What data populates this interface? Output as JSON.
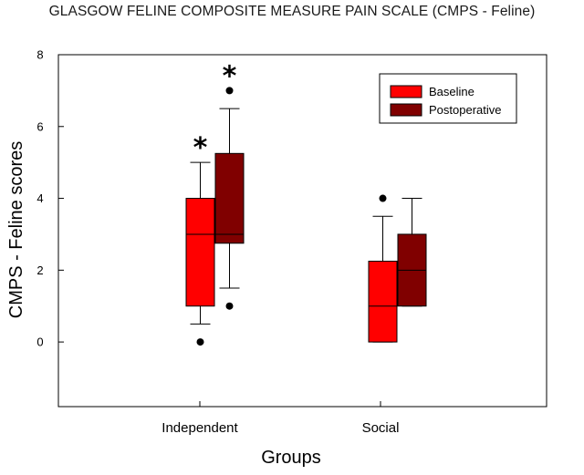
{
  "chart_data": {
    "type": "box",
    "title": "GLASGOW FELINE COMPOSITE MEASURE PAIN SCALE (CMPS - Feline)",
    "xlabel": "Groups",
    "ylabel": "CMPS - Feline scores",
    "ylim": [
      -1.8,
      8
    ],
    "yticks": [
      0,
      2,
      4,
      6,
      8
    ],
    "grid": false,
    "legend_position": "top-right",
    "categories": [
      "Independent",
      "Social"
    ],
    "series": [
      {
        "name": "Baseline",
        "color": "#ff0000",
        "boxes": [
          {
            "category": "Independent",
            "whisker_low": 0.5,
            "q1": 1.0,
            "median": 3.0,
            "q3": 4.0,
            "whisker_high": 5.0,
            "outliers": [
              0
            ],
            "significance": "*"
          },
          {
            "category": "Social",
            "whisker_low": 0.0,
            "q1": 0.0,
            "median": 1.0,
            "q3": 2.25,
            "whisker_high": 3.5,
            "outliers": [
              4
            ],
            "significance": ""
          }
        ]
      },
      {
        "name": "Postoperative",
        "color": "#800000",
        "boxes": [
          {
            "category": "Independent",
            "whisker_low": 1.5,
            "q1": 2.75,
            "median": 3.0,
            "q3": 5.25,
            "whisker_high": 6.5,
            "outliers": [
              1,
              7
            ],
            "significance": "*"
          },
          {
            "category": "Social",
            "whisker_low": 1.0,
            "q1": 1.0,
            "median": 2.0,
            "q3": 3.0,
            "whisker_high": 4.0,
            "outliers": [],
            "significance": ""
          }
        ]
      }
    ]
  }
}
